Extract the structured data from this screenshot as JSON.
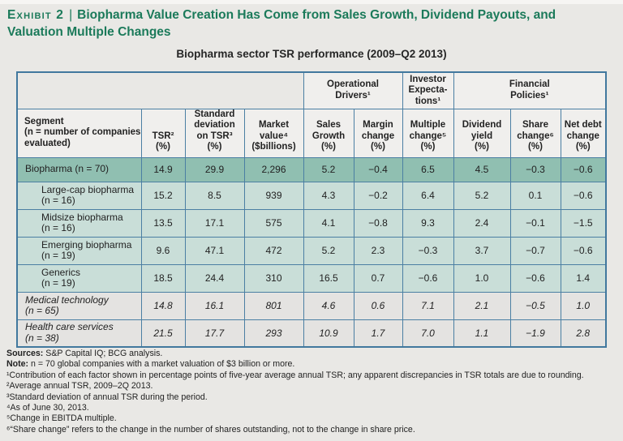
{
  "page": {
    "exhibit_label": "Exhibit 2",
    "separator": "|",
    "title": "Biopharma Value Creation Has Come from Sales Growth, Dividend Payouts, and Valuation Multiple Changes",
    "subtitle": "Biopharma sector TSR performance (2009–Q2 2013)"
  },
  "colors": {
    "page_background": "#e9e8e5",
    "title_green": "#1b7a5a",
    "table_border_blue": "#4b7fa3",
    "header_cell_bg": "#f0efed",
    "total_row_teal": "#90bfb1",
    "sub_row_mint": "#c9ded8",
    "neutral_row_gray": "#e4e3e1"
  },
  "chart_data": {
    "type": "table",
    "title": "Biopharma sector TSR performance (2009–Q2 2013)",
    "group_headers": [
      {
        "label": "Operational\nDrivers¹",
        "span": 2
      },
      {
        "label": "Investor\nExpecta-\ntions¹",
        "span": 1
      },
      {
        "label": "Financial\nPolicies¹",
        "span": 3
      }
    ],
    "columns": [
      "Segment\n(n = number of companies\nevaluated)",
      "TSR²\n(%)",
      "Standard\ndeviation\non TSR³\n(%)",
      "Market\nvalue⁴\n($billions)",
      "Sales\nGrowth\n(%)",
      "Margin\nchange\n(%)",
      "Multiple\nchange⁵\n(%)",
      "Dividend\nyield\n(%)",
      "Share\nchange⁶\n(%)",
      "Net debt\nchange\n(%)"
    ],
    "rows": [
      {
        "segment": "Biopharma (n = 70)",
        "style": "total",
        "values": [
          "14.9",
          "29.9",
          "2,296",
          "5.2",
          "−0.4",
          "6.5",
          "4.5",
          "−0.3",
          "−0.6"
        ]
      },
      {
        "segment": "Large-cap biopharma\n(n = 16)",
        "style": "sub",
        "values": [
          "15.2",
          "8.5",
          "939",
          "4.3",
          "−0.2",
          "6.4",
          "5.2",
          "0.1",
          "−0.6"
        ]
      },
      {
        "segment": "Midsize biopharma\n(n = 16)",
        "style": "sub",
        "values": [
          "13.5",
          "17.1",
          "575",
          "4.1",
          "−0.8",
          "9.3",
          "2.4",
          "−0.1",
          "−1.5"
        ]
      },
      {
        "segment": "Emerging biopharma\n(n = 19)",
        "style": "sub",
        "values": [
          "9.6",
          "47.1",
          "472",
          "5.2",
          "2.3",
          "−0.3",
          "3.7",
          "−0.7",
          "−0.6"
        ]
      },
      {
        "segment": "Generics\n(n = 19)",
        "style": "sub",
        "values": [
          "18.5",
          "24.4",
          "310",
          "16.5",
          "0.7",
          "−0.6",
          "1.0",
          "−0.6",
          "1.4"
        ]
      },
      {
        "segment": "Medical technology\n(n = 65)",
        "style": "italic",
        "values": [
          "14.8",
          "16.1",
          "801",
          "4.6",
          "0.6",
          "7.1",
          "2.1",
          "−0.5",
          "1.0"
        ]
      },
      {
        "segment": "Health care services\n(n = 38)",
        "style": "italic",
        "values": [
          "21.5",
          "17.7",
          "293",
          "10.9",
          "1.7",
          "7.0",
          "1.1",
          "−1.9",
          "2.8"
        ]
      }
    ]
  },
  "footnotes": [
    {
      "prefix": "Sources:",
      "text": " S&P Capital IQ; BCG analysis."
    },
    {
      "prefix": "Note:",
      "text": " n = 70 global companies with a market valuation of $3 billion or more."
    },
    {
      "prefix": "",
      "text": "¹Contribution of each factor shown in percentage points of five-year average annual TSR; any apparent discrepancies in TSR totals are due to rounding."
    },
    {
      "prefix": "",
      "text": "²Average annual TSR, 2009–2Q 2013."
    },
    {
      "prefix": "",
      "text": "³Standard deviation of annual TSR during the period."
    },
    {
      "prefix": "",
      "text": "⁴As of June 30, 2013."
    },
    {
      "prefix": "",
      "text": "⁵Change in EBITDA multiple."
    },
    {
      "prefix": "",
      "text": "⁶“Share change” refers to the change in the number of shares outstanding, not to the change in share price."
    }
  ]
}
